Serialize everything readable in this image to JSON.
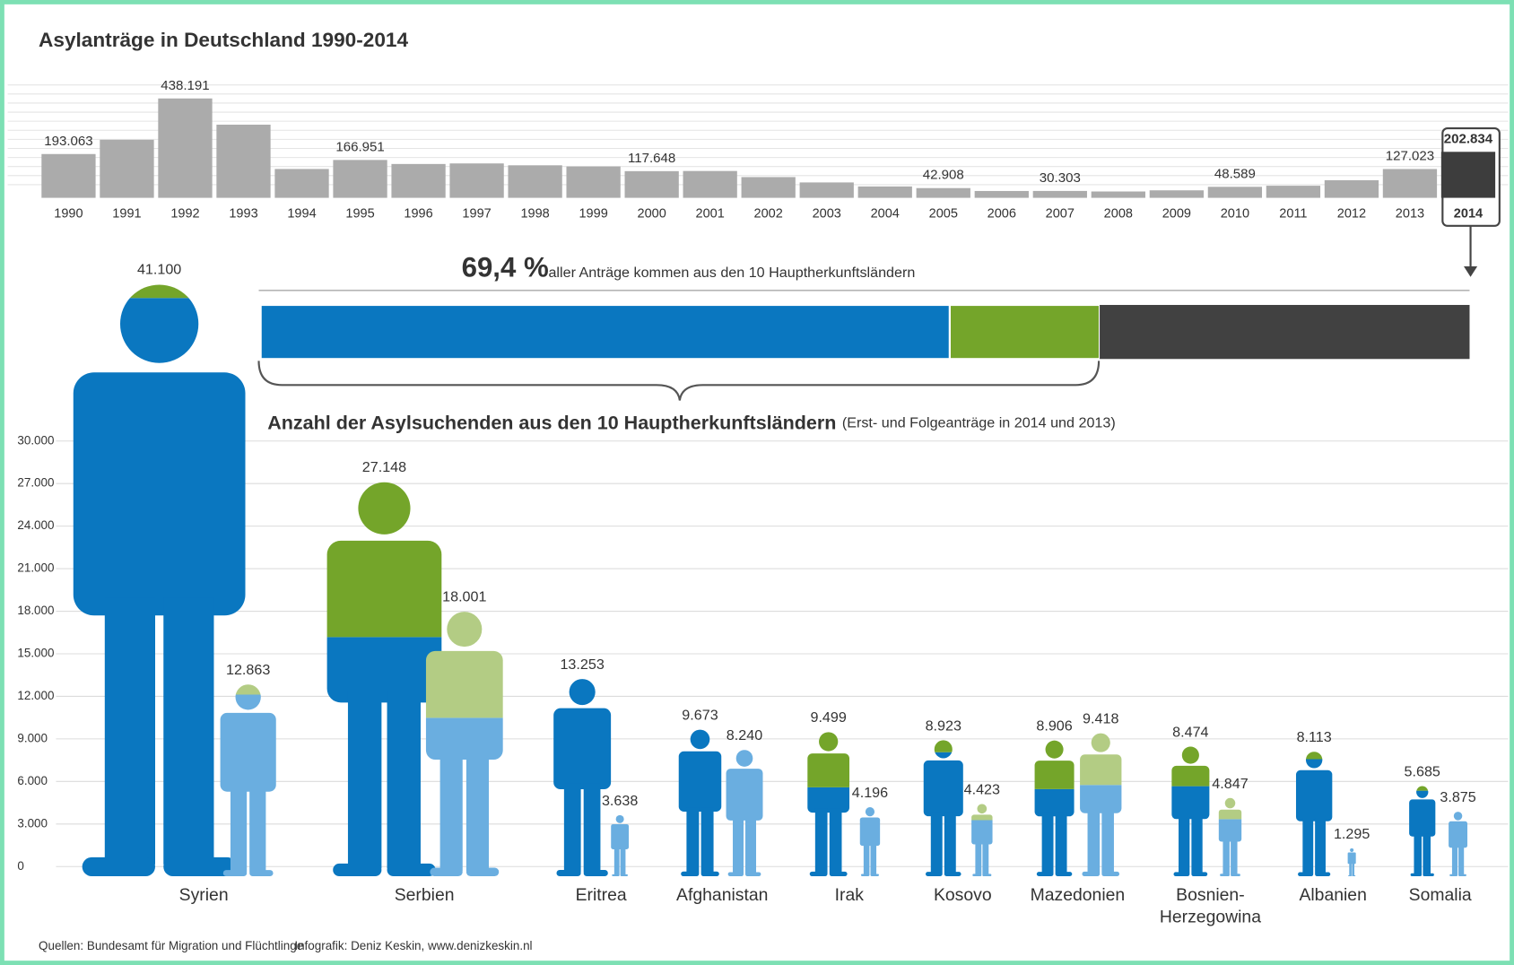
{
  "chart_data": [
    {
      "type": "bar",
      "title": "Asylanträge in Deutschland 1990-2014",
      "categories": [
        "1990",
        "1991",
        "1992",
        "1993",
        "1994",
        "1995",
        "1996",
        "1997",
        "1998",
        "1999",
        "2000",
        "2001",
        "2002",
        "2003",
        "2004",
        "2005",
        "2006",
        "2007",
        "2008",
        "2009",
        "2010",
        "2011",
        "2012",
        "2013",
        "2014"
      ],
      "values": [
        193063,
        256112,
        438191,
        322599,
        127210,
        166951,
        149193,
        151700,
        143429,
        138319,
        117648,
        118306,
        91471,
        67848,
        50152,
        42908,
        30100,
        30303,
        28018,
        33033,
        48589,
        53347,
        77651,
        127023,
        202834
      ],
      "value_labels": [
        "193.063",
        null,
        "438.191",
        null,
        null,
        "166.951",
        null,
        null,
        null,
        null,
        "117.648",
        null,
        null,
        null,
        null,
        "42.908",
        null,
        "30.303",
        null,
        null,
        "48.589",
        null,
        null,
        "127.023",
        "202.834"
      ],
      "colors": [
        "#ababab",
        "#ababab",
        "#ababab",
        "#ababab",
        "#ababab",
        "#ababab",
        "#ababab",
        "#ababab",
        "#ababab",
        "#ababab",
        "#ababab",
        "#ababab",
        "#ababab",
        "#ababab",
        "#ababab",
        "#ababab",
        "#ababab",
        "#ababab",
        "#ababab",
        "#ababab",
        "#ababab",
        "#ababab",
        "#ababab",
        "#ababab",
        "#3d3d3d"
      ]
    },
    {
      "type": "stacked-bar",
      "title": "69,4 %",
      "subtitle": "aller Anträge kommen aus den 10 Hauptherkunftsländern",
      "xlim": [
        0,
        100
      ],
      "series": [
        {
          "color": "#0a77c0",
          "values": [
            57.0
          ]
        },
        {
          "color": "#74a52a",
          "values": [
            12.4
          ]
        },
        {
          "color": "#414141",
          "values": [
            30.6
          ]
        }
      ]
    },
    {
      "type": "figure",
      "title": "Anzahl der Asylsuchenden aus den 10 Hauptherkunftsländern",
      "subtitle": "(Erst- und Folgeanträge in 2014 und 2013)",
      "categories": [
        "Syrien",
        "Serbien",
        "Eritrea",
        "Afghanistan",
        "Irak",
        "Kosovo",
        "Mazedonien",
        "Bosnien-\nHerzegowina",
        "Albanien",
        "Somalia"
      ],
      "ylim": [
        0,
        30000
      ],
      "yticks": [
        0,
        {
          "value": 3000,
          "label": "3.000"
        },
        {
          "value": 6000,
          "label": "6.000"
        },
        {
          "value": 9000,
          "label": "9.000"
        },
        {
          "value": 12000,
          "label": "12.000"
        },
        {
          "value": 15000,
          "label": "15.000"
        },
        {
          "value": 18000,
          "label": "18.000"
        },
        {
          "value": 21000,
          "label": "21.000"
        },
        {
          "value": 24000,
          "label": "24.000"
        },
        {
          "value": 27000,
          "label": "27.000"
        },
        {
          "value": 30000,
          "label": "30.000"
        }
      ],
      "grid": true,
      "series": [
        {
          "color": "#0a77c0",
          "accent_color": "#74a52a",
          "values": [
            41100,
            27148,
            13253,
            9673,
            9499,
            8923,
            8906,
            8474,
            8113,
            5685
          ],
          "value_labels": [
            "41.100",
            "27.148",
            "13.253",
            "9.673",
            "9.499",
            "8.923",
            "8.906",
            "8.474",
            "8.113",
            "5.685"
          ],
          "accent_values": [
            1000,
            10700,
            0,
            0,
            3650,
            800,
            3200,
            2600,
            500,
            300
          ]
        },
        {
          "color": "#6aaee0",
          "accent_color": "#b3cc84",
          "values": [
            12863,
            18001,
            3638,
            8240,
            4196,
            4423,
            9418,
            4847,
            1295,
            3875
          ],
          "value_labels": [
            "12.863",
            "18.001",
            "3.638",
            "8.240",
            "4.196",
            "4.423",
            "9.418",
            "4.847",
            "1.295",
            "3.875"
          ],
          "accent_values": [
            700,
            7240,
            0,
            0,
            0,
            1000,
            3420,
            1320,
            0,
            0
          ]
        }
      ]
    }
  ],
  "footer": {
    "source": "Quellen: Bundesamt für Migration und Flüchtlinge",
    "credit": "Infografik: Deniz Keskin, www.denizkeskin.nl"
  }
}
